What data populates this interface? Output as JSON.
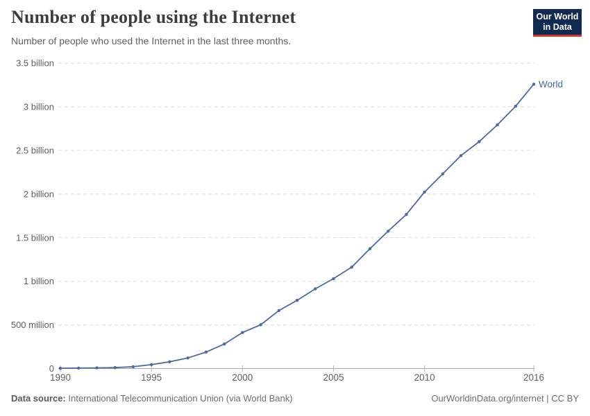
{
  "header": {
    "title": "Number of people using the Internet",
    "subtitle": "Number of people who used the Internet in the last three months."
  },
  "logo": {
    "line1": "Our World",
    "line2": "in Data",
    "bg_color": "#102a52",
    "accent_color": "#d7382d"
  },
  "chart_data": {
    "type": "line",
    "title": "Number of people using the Internet",
    "subtitle": "Number of people who used the Internet in the last three months.",
    "xlabel": "",
    "ylabel": "",
    "xlim": [
      1990,
      2016
    ],
    "ylim_billions": [
      0,
      3.5
    ],
    "grid": "horizontal-dashed",
    "legend_position": "end-of-line-label",
    "x_ticks": [
      1990,
      1995,
      2000,
      2005,
      2010,
      2016
    ],
    "y_ticks": [
      {
        "value": 0,
        "label": "0"
      },
      {
        "value": 0.5,
        "label": "500 million"
      },
      {
        "value": 1,
        "label": "1 billion"
      },
      {
        "value": 1.5,
        "label": "1.5 billion"
      },
      {
        "value": 2,
        "label": "2 billion"
      },
      {
        "value": 2.5,
        "label": "2.5 billion"
      },
      {
        "value": 3,
        "label": "3 billion"
      },
      {
        "value": 3.5,
        "label": "3.5 billion"
      }
    ],
    "series": [
      {
        "name": "World",
        "x": [
          1990,
          1991,
          1992,
          1993,
          1994,
          1995,
          1996,
          1997,
          1998,
          1999,
          2000,
          2001,
          2002,
          2003,
          2004,
          2005,
          2006,
          2007,
          2008,
          2009,
          2010,
          2011,
          2012,
          2013,
          2014,
          2015,
          2016
        ],
        "y_billions": [
          0.0026,
          0.0044,
          0.007,
          0.0103,
          0.0209,
          0.0448,
          0.0774,
          0.1208,
          0.188,
          0.2809,
          0.4128,
          0.5006,
          0.6648,
          0.7814,
          0.9133,
          1.03,
          1.162,
          1.373,
          1.575,
          1.766,
          2.023,
          2.231,
          2.441,
          2.601,
          2.793,
          3.007,
          3.26
        ]
      }
    ],
    "colors": {
      "line": "#4c69a4",
      "grid": "#dcdcdc",
      "axis": "#a3a3a3",
      "tick": "#b3b3b3",
      "tick_label": "#5f5f5f"
    }
  },
  "footer": {
    "source_label": "Data source:",
    "source_text": " International Telecommunication Union (via World Bank)",
    "right_text": "OurWorldinData.org/internet | CC BY"
  }
}
